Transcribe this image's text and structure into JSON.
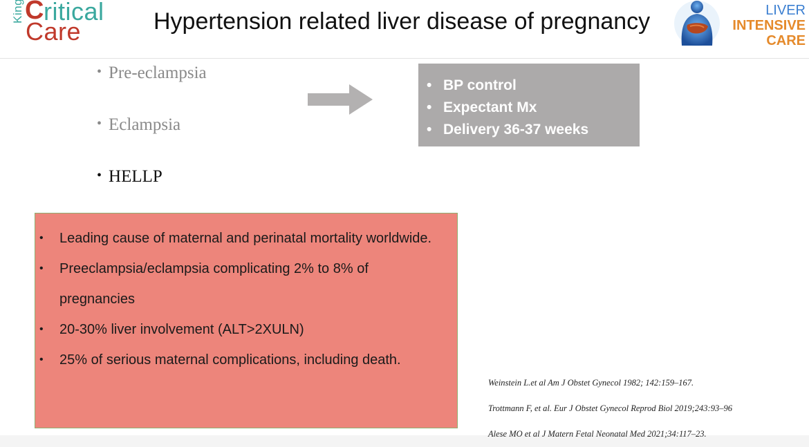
{
  "header": {
    "title": "Hypertension related liver disease of pregnancy",
    "logo_left": {
      "kings": "King's",
      "c": "C",
      "critical": "ritical",
      "care": "Care"
    },
    "logo_right": {
      "line1": "LIVER",
      "line2": "INTENSIVE",
      "line3": "CARE",
      "icon": "liver-body-icon"
    }
  },
  "conditions": [
    {
      "label": "Pre-eclampsia"
    },
    {
      "label": "Eclampsia"
    },
    {
      "label": "HELLP"
    }
  ],
  "management": {
    "items": [
      "BP control",
      "Expectant Mx",
      "Delivery 36-37 weeks"
    ]
  },
  "facts": {
    "items": [
      "Leading cause of maternal and perinatal mortality worldwide.",
      "Preeclampsia/eclampsia complicating 2% to 8% of pregnancies",
      "20-30% liver involvement (ALT>2XULN)",
      "25% of serious maternal complications, including death."
    ]
  },
  "references": [
    "Weinstein L.et al  Am J Obstet Gynecol 1982; 142:159–167.",
    "Trottmann F, et al. Eur J Obstet Gynecol Reprod Biol 2019;243:93–96",
    "Alese MO et al J Matern Fetal Neonatal Med 2021;34:117–23."
  ],
  "colors": {
    "facts_box": "#ed857b",
    "management_box": "#acaaaa",
    "arrow": "#b3b1b1",
    "kcc_teal": "#3aa89e",
    "kcc_red": "#c0392b",
    "lic_blue": "#3b7fd1",
    "lic_orange": "#e58a2b"
  }
}
